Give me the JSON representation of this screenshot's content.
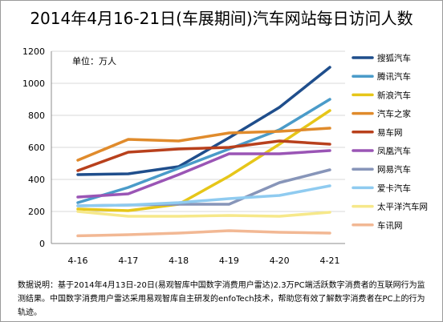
{
  "chart_data": {
    "type": "line",
    "title": "2014年4月16-21日(车展期间)汽车网站每日访问人数",
    "unit_label": "单位：万人",
    "categories": [
      "4-16",
      "4-17",
      "4-18",
      "4-19",
      "4-20",
      "4-21"
    ],
    "ylim": [
      0,
      1200
    ],
    "yticks": [
      "0",
      "200",
      "400",
      "600",
      "800",
      "1000",
      "1200"
    ],
    "legend_position": "right",
    "series": [
      {
        "name": "搜狐汽车",
        "color": "#1f4e8c",
        "values": [
          430,
          435,
          480,
          660,
          850,
          1100
        ]
      },
      {
        "name": "腾讯汽车",
        "color": "#4a9bc9",
        "values": [
          255,
          350,
          470,
          590,
          710,
          900
        ]
      },
      {
        "name": "新浪汽车",
        "color": "#e6c619",
        "values": [
          215,
          205,
          245,
          420,
          620,
          830
        ]
      },
      {
        "name": "汽车之家",
        "color": "#e08b2c",
        "values": [
          520,
          650,
          640,
          690,
          700,
          720
        ]
      },
      {
        "name": "易车网",
        "color": "#b8401c",
        "values": [
          455,
          570,
          590,
          600,
          640,
          620
        ]
      },
      {
        "name": "凤凰汽车",
        "color": "#9a55b5",
        "values": [
          290,
          310,
          430,
          560,
          560,
          580
        ]
      },
      {
        "name": "网易汽车",
        "color": "#8795b9",
        "values": [
          235,
          240,
          245,
          245,
          380,
          460
        ]
      },
      {
        "name": "爱卡汽车",
        "color": "#8fcbf0",
        "values": [
          235,
          240,
          255,
          280,
          300,
          360
        ]
      },
      {
        "name": "太平洋汽车网",
        "color": "#f6e88a",
        "values": [
          200,
          170,
          170,
          175,
          170,
          195
        ]
      },
      {
        "name": "车讯网",
        "color": "#f2b894",
        "values": [
          48,
          55,
          65,
          80,
          70,
          65
        ]
      }
    ]
  },
  "footnote": "数据说明：基于2014年4月13日-20日(易观智库中国数字消费用户雷达)2.3万PC端活跃数字消费者的互联网行为监测结果。中国数字消费用户雷达采用易观智库自主研发的enfoTech技术，帮助您有效了解数字消费者在PC上的行为轨迹。"
}
